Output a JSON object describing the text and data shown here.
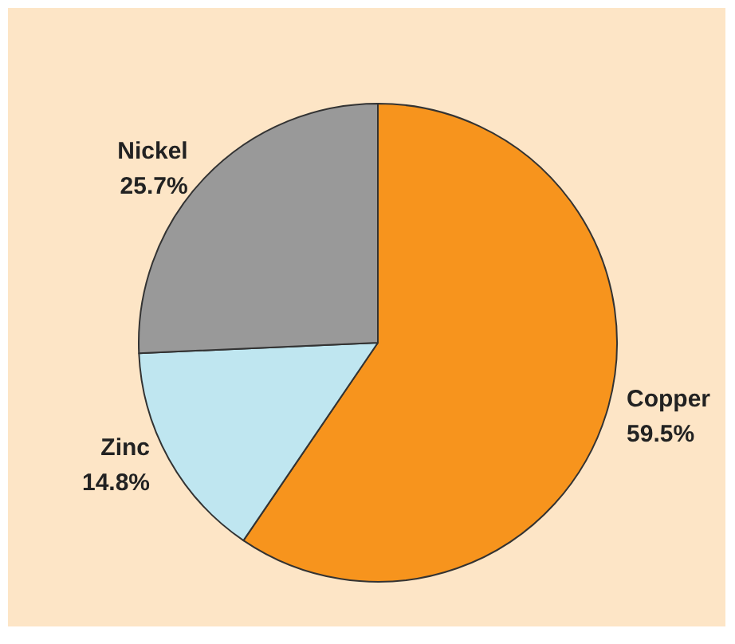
{
  "chart_data": {
    "type": "pie",
    "categories": [
      "Copper",
      "Zinc",
      "Nickel"
    ],
    "values": [
      59.5,
      14.8,
      25.7
    ],
    "colors": [
      "#f7941d",
      "#bfe6f0",
      "#999999"
    ],
    "value_labels": [
      "59.5%",
      "14.8%",
      "25.7%"
    ],
    "legend": false
  }
}
